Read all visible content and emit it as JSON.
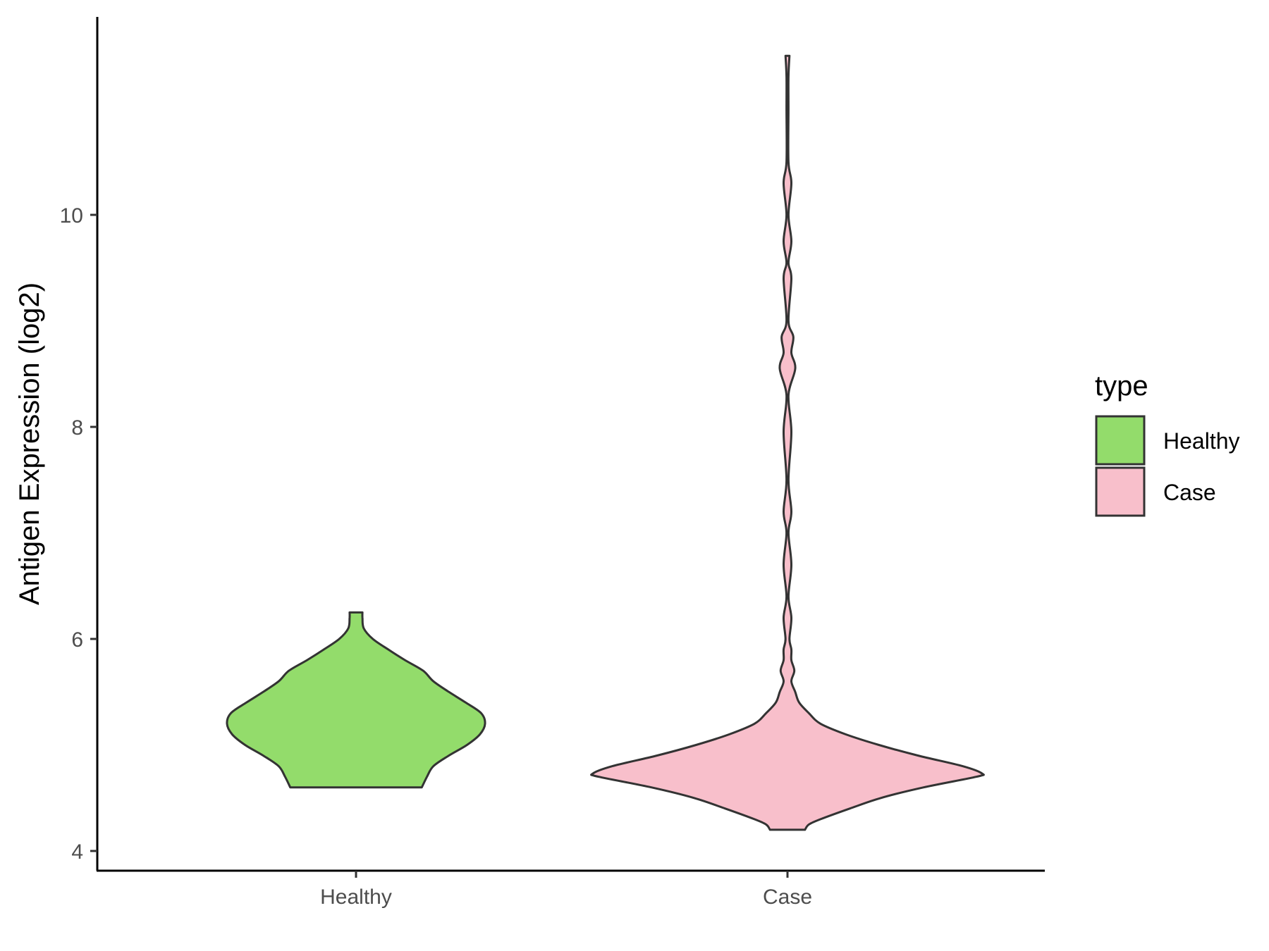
{
  "chart_data": {
    "type": "violin",
    "categories": [
      "Healthy",
      "Case"
    ],
    "ylabel": "Antigen Expression (log2)",
    "xlabel": "",
    "y_ticks": [
      4,
      6,
      8,
      10
    ],
    "ylim": [
      3.8,
      11.9
    ],
    "grid": false,
    "legend": {
      "title": "type",
      "placement": "right",
      "entries": [
        {
          "label": "Healthy",
          "color": "#93dc6b"
        },
        {
          "label": "Case",
          "color": "#f8bfcb"
        }
      ]
    },
    "series": [
      {
        "category": "Healthy",
        "color": "#93dc6b",
        "min": 4.6,
        "max": 6.25,
        "density": [
          [
            4.6,
            0.51
          ],
          [
            4.7,
            0.55
          ],
          [
            4.8,
            0.6
          ],
          [
            4.9,
            0.72
          ],
          [
            5.0,
            0.86
          ],
          [
            5.1,
            0.96
          ],
          [
            5.2,
            1.0
          ],
          [
            5.3,
            0.97
          ],
          [
            5.4,
            0.85
          ],
          [
            5.5,
            0.72
          ],
          [
            5.6,
            0.6
          ],
          [
            5.7,
            0.52
          ],
          [
            5.8,
            0.38
          ],
          [
            5.9,
            0.25
          ],
          [
            6.0,
            0.13
          ],
          [
            6.1,
            0.06
          ],
          [
            6.2,
            0.05
          ],
          [
            6.25,
            0.05
          ]
        ]
      },
      {
        "category": "Case",
        "color": "#f8bfcb",
        "min": 4.2,
        "max": 11.5,
        "density": [
          [
            4.2,
            0.09
          ],
          [
            4.25,
            0.11
          ],
          [
            4.3,
            0.17
          ],
          [
            4.4,
            0.32
          ],
          [
            4.5,
            0.48
          ],
          [
            4.6,
            0.7
          ],
          [
            4.7,
            0.97
          ],
          [
            4.73,
            1.0
          ],
          [
            4.8,
            0.9
          ],
          [
            4.9,
            0.67
          ],
          [
            5.0,
            0.47
          ],
          [
            5.1,
            0.3
          ],
          [
            5.2,
            0.17
          ],
          [
            5.3,
            0.11
          ],
          [
            5.4,
            0.06
          ],
          [
            5.5,
            0.04
          ],
          [
            5.6,
            0.02
          ],
          [
            5.7,
            0.035
          ],
          [
            5.8,
            0.02
          ],
          [
            5.9,
            0.02
          ],
          [
            6.0,
            0.01
          ],
          [
            6.2,
            0.02
          ],
          [
            6.4,
            0.005
          ],
          [
            6.7,
            0.02
          ],
          [
            7.0,
            0.005
          ],
          [
            7.2,
            0.02
          ],
          [
            7.5,
            0.005
          ],
          [
            7.95,
            0.02
          ],
          [
            8.3,
            0.005
          ],
          [
            8.55,
            0.04
          ],
          [
            8.7,
            0.02
          ],
          [
            8.85,
            0.03
          ],
          [
            9.0,
            0.005
          ],
          [
            9.4,
            0.02
          ],
          [
            9.55,
            0.005
          ],
          [
            9.75,
            0.02
          ],
          [
            10.0,
            0.005
          ],
          [
            10.3,
            0.02
          ],
          [
            10.5,
            0.005
          ],
          [
            11.0,
            0.005
          ],
          [
            11.3,
            0.005
          ],
          [
            11.5,
            0.01
          ]
        ]
      }
    ]
  }
}
